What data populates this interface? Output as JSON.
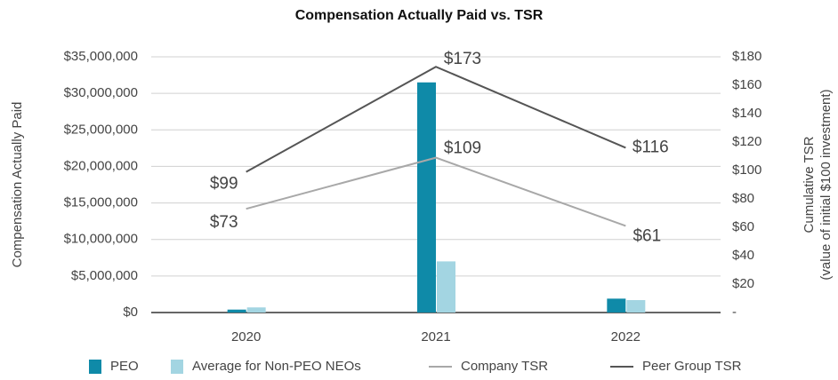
{
  "chart_data": {
    "type": "bar",
    "title": "Compensation Actually Paid vs. TSR",
    "ylabel": "Compensation Actually Paid",
    "y2label": [
      "Cumulative TSR",
      "(value of initial $100 investment)"
    ],
    "categories": [
      "2020",
      "2021",
      "2022"
    ],
    "ylim": [
      0,
      35000000
    ],
    "yticks": [
      {
        "value": 0,
        "label": "$0"
      },
      {
        "value": 5000000,
        "label": "$5,000,000"
      },
      {
        "value": 10000000,
        "label": "$10,000,000"
      },
      {
        "value": 15000000,
        "label": "$15,000,000"
      },
      {
        "value": 20000000,
        "label": "$20,000,000"
      },
      {
        "value": 25000000,
        "label": "$25,000,000"
      },
      {
        "value": 30000000,
        "label": "$30,000,000"
      },
      {
        "value": 35000000,
        "label": "$35,000,000"
      }
    ],
    "y2lim": [
      0,
      180
    ],
    "y2ticks": [
      {
        "value": 0,
        "label": "-"
      },
      {
        "value": 20,
        "label": "$20"
      },
      {
        "value": 40,
        "label": "$40"
      },
      {
        "value": 60,
        "label": "$60"
      },
      {
        "value": 80,
        "label": "$80"
      },
      {
        "value": 100,
        "label": "$100"
      },
      {
        "value": 120,
        "label": "$120"
      },
      {
        "value": 140,
        "label": "$140"
      },
      {
        "value": 160,
        "label": "$160"
      },
      {
        "value": 180,
        "label": "$180"
      }
    ],
    "grid": true,
    "series": [
      {
        "name": "PEO",
        "type": "bar",
        "color": "#0f8aa8",
        "values": [
          400000,
          31500000,
          1900000
        ]
      },
      {
        "name": "Average for Non-PEO NEOs",
        "type": "bar",
        "color": "#a3d5e2",
        "values": [
          700000,
          7000000,
          1700000
        ]
      },
      {
        "name": "Company TSR",
        "type": "line",
        "axis": "y2",
        "color": "#a8a8a8",
        "values": [
          73,
          109,
          61
        ],
        "value_labels": [
          "$73",
          "$109",
          "$61"
        ]
      },
      {
        "name": "Peer Group TSR",
        "type": "line",
        "axis": "y2",
        "color": "#555555",
        "values": [
          99,
          173,
          116
        ],
        "value_labels": [
          "$99",
          "$173",
          "$116"
        ]
      }
    ]
  }
}
